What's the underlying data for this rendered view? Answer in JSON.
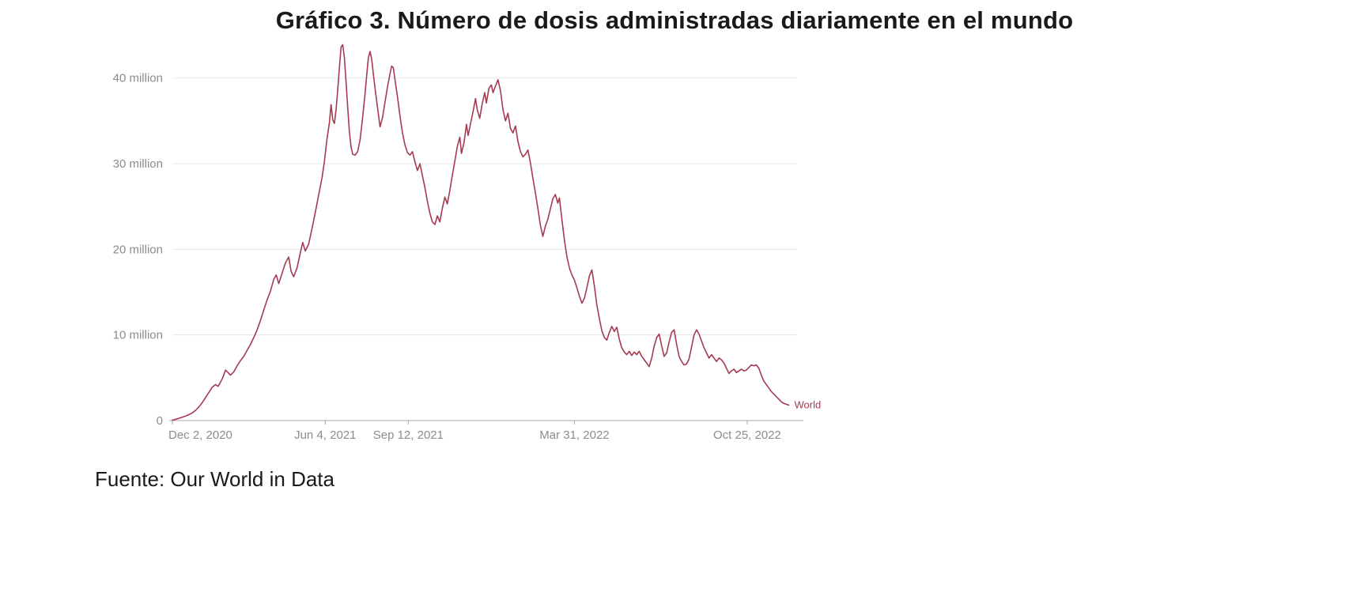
{
  "page": {
    "source": "Fuente: Our World in Data"
  },
  "chart_data": {
    "type": "line",
    "title": "Gráfico 3. Número de dosis administradas diariamente en el mundo",
    "subtitle": "",
    "x_unit": "days since Dec 2, 2020",
    "value_unit": "doses administered per day (millions, 7-day smoothed)",
    "xlim": [
      0,
      752
    ],
    "ylim": [
      0,
      44.5
    ],
    "grid": true,
    "legend_position": "end-of-line",
    "colors": {
      "grid": "#e7e7e7",
      "axis_line": "#a8a8a8",
      "axis_text": "#8c8c8c"
    },
    "x_ticks": [
      {
        "day": 0,
        "label": "Dec 2, 2020"
      },
      {
        "day": 184,
        "label": "Jun 4, 2021"
      },
      {
        "day": 284,
        "label": "Sep 12, 2021"
      },
      {
        "day": 484,
        "label": "Mar 31, 2022"
      },
      {
        "day": 692,
        "label": "Oct 25, 2022"
      }
    ],
    "y_ticks": [
      {
        "value": 0,
        "label": "0"
      },
      {
        "value": 10,
        "label": "10 million"
      },
      {
        "value": 20,
        "label": "20 million"
      },
      {
        "value": 30,
        "label": "30 million"
      },
      {
        "value": 40,
        "label": "40 million"
      }
    ],
    "series": [
      {
        "name": "World",
        "color": "#a63a50",
        "points": [
          [
            0,
            0.05
          ],
          [
            6,
            0.2
          ],
          [
            12,
            0.4
          ],
          [
            18,
            0.6
          ],
          [
            24,
            0.9
          ],
          [
            28,
            1.2
          ],
          [
            32,
            1.6
          ],
          [
            36,
            2.1
          ],
          [
            40,
            2.7
          ],
          [
            44,
            3.3
          ],
          [
            48,
            3.9
          ],
          [
            52,
            4.2
          ],
          [
            55,
            4.0
          ],
          [
            58,
            4.5
          ],
          [
            61,
            5.1
          ],
          [
            64,
            5.9
          ],
          [
            67,
            5.6
          ],
          [
            70,
            5.3
          ],
          [
            74,
            5.7
          ],
          [
            78,
            6.4
          ],
          [
            82,
            7.0
          ],
          [
            86,
            7.5
          ],
          [
            90,
            8.2
          ],
          [
            94,
            8.9
          ],
          [
            98,
            9.7
          ],
          [
            102,
            10.6
          ],
          [
            106,
            11.7
          ],
          [
            110,
            12.9
          ],
          [
            114,
            14.1
          ],
          [
            118,
            15.1
          ],
          [
            122,
            16.5
          ],
          [
            125,
            17.0
          ],
          [
            128,
            16.0
          ],
          [
            132,
            17.2
          ],
          [
            136,
            18.4
          ],
          [
            140,
            19.1
          ],
          [
            143,
            17.4
          ],
          [
            146,
            16.8
          ],
          [
            150,
            17.8
          ],
          [
            154,
            19.6
          ],
          [
            157,
            20.8
          ],
          [
            160,
            19.8
          ],
          [
            164,
            20.6
          ],
          [
            168,
            22.4
          ],
          [
            172,
            24.3
          ],
          [
            176,
            26.3
          ],
          [
            180,
            28.3
          ],
          [
            183,
            30.2
          ],
          [
            186,
            32.8
          ],
          [
            189,
            34.8
          ],
          [
            191,
            36.9
          ],
          [
            193,
            35.1
          ],
          [
            195,
            34.7
          ],
          [
            197,
            36.3
          ],
          [
            199,
            38.6
          ],
          [
            201,
            41.2
          ],
          [
            203,
            43.6
          ],
          [
            205,
            43.9
          ],
          [
            207,
            42.4
          ],
          [
            209,
            39.6
          ],
          [
            211,
            36.6
          ],
          [
            213,
            33.8
          ],
          [
            215,
            32.0
          ],
          [
            217,
            31.1
          ],
          [
            220,
            31.0
          ],
          [
            223,
            31.4
          ],
          [
            226,
            32.8
          ],
          [
            229,
            35.4
          ],
          [
            232,
            38.2
          ],
          [
            234,
            40.4
          ],
          [
            236,
            42.4
          ],
          [
            238,
            43.1
          ],
          [
            240,
            42.2
          ],
          [
            242,
            40.4
          ],
          [
            245,
            38.0
          ],
          [
            248,
            35.8
          ],
          [
            250,
            34.3
          ],
          [
            253,
            35.4
          ],
          [
            256,
            37.2
          ],
          [
            259,
            39.0
          ],
          [
            262,
            40.5
          ],
          [
            264,
            41.4
          ],
          [
            266,
            41.2
          ],
          [
            268,
            39.8
          ],
          [
            271,
            37.8
          ],
          [
            274,
            35.6
          ],
          [
            277,
            33.6
          ],
          [
            280,
            32.2
          ],
          [
            283,
            31.3
          ],
          [
            286,
            31.0
          ],
          [
            289,
            31.4
          ],
          [
            292,
            30.2
          ],
          [
            295,
            29.2
          ],
          [
            298,
            30.0
          ],
          [
            301,
            28.6
          ],
          [
            304,
            27.2
          ],
          [
            307,
            25.6
          ],
          [
            310,
            24.2
          ],
          [
            313,
            23.2
          ],
          [
            316,
            22.9
          ],
          [
            319,
            23.9
          ],
          [
            322,
            23.2
          ],
          [
            325,
            24.8
          ],
          [
            328,
            26.1
          ],
          [
            331,
            25.3
          ],
          [
            334,
            26.9
          ],
          [
            337,
            28.6
          ],
          [
            340,
            30.3
          ],
          [
            343,
            32.0
          ],
          [
            346,
            33.1
          ],
          [
            348,
            31.2
          ],
          [
            351,
            32.4
          ],
          [
            354,
            34.6
          ],
          [
            356,
            33.3
          ],
          [
            359,
            34.7
          ],
          [
            362,
            36.1
          ],
          [
            365,
            37.6
          ],
          [
            367,
            36.3
          ],
          [
            370,
            35.3
          ],
          [
            373,
            37.0
          ],
          [
            376,
            38.3
          ],
          [
            378,
            37.1
          ],
          [
            381,
            38.8
          ],
          [
            384,
            39.2
          ],
          [
            386,
            38.3
          ],
          [
            389,
            39.1
          ],
          [
            392,
            39.8
          ],
          [
            395,
            38.5
          ],
          [
            398,
            36.3
          ],
          [
            401,
            35.0
          ],
          [
            404,
            35.9
          ],
          [
            407,
            34.1
          ],
          [
            410,
            33.6
          ],
          [
            413,
            34.4
          ],
          [
            416,
            32.6
          ],
          [
            419,
            31.4
          ],
          [
            422,
            30.8
          ],
          [
            425,
            31.1
          ],
          [
            428,
            31.6
          ],
          [
            431,
            30.1
          ],
          [
            434,
            28.3
          ],
          [
            437,
            26.6
          ],
          [
            440,
            24.8
          ],
          [
            443,
            22.8
          ],
          [
            446,
            21.5
          ],
          [
            449,
            22.7
          ],
          [
            452,
            23.5
          ],
          [
            455,
            24.7
          ],
          [
            458,
            25.9
          ],
          [
            461,
            26.4
          ],
          [
            464,
            25.4
          ],
          [
            466,
            26.0
          ],
          [
            469,
            23.4
          ],
          [
            472,
            21.0
          ],
          [
            475,
            19.1
          ],
          [
            478,
            17.8
          ],
          [
            481,
            17.0
          ],
          [
            484,
            16.4
          ],
          [
            487,
            15.5
          ],
          [
            490,
            14.5
          ],
          [
            493,
            13.7
          ],
          [
            496,
            14.3
          ],
          [
            499,
            15.5
          ],
          [
            502,
            16.9
          ],
          [
            505,
            17.6
          ],
          [
            508,
            15.7
          ],
          [
            511,
            13.5
          ],
          [
            514,
            11.9
          ],
          [
            517,
            10.5
          ],
          [
            520,
            9.7
          ],
          [
            523,
            9.4
          ],
          [
            526,
            10.3
          ],
          [
            529,
            11.0
          ],
          [
            532,
            10.4
          ],
          [
            535,
            10.9
          ],
          [
            538,
            9.5
          ],
          [
            541,
            8.5
          ],
          [
            544,
            8.0
          ],
          [
            547,
            7.7
          ],
          [
            550,
            8.1
          ],
          [
            553,
            7.6
          ],
          [
            556,
            8.0
          ],
          [
            559,
            7.7
          ],
          [
            562,
            8.1
          ],
          [
            565,
            7.5
          ],
          [
            568,
            7.1
          ],
          [
            571,
            6.7
          ],
          [
            574,
            6.3
          ],
          [
            577,
            7.3
          ],
          [
            580,
            8.7
          ],
          [
            583,
            9.7
          ],
          [
            586,
            10.1
          ],
          [
            589,
            8.7
          ],
          [
            592,
            7.5
          ],
          [
            595,
            7.9
          ],
          [
            598,
            9.2
          ],
          [
            601,
            10.3
          ],
          [
            604,
            10.6
          ],
          [
            607,
            8.9
          ],
          [
            610,
            7.5
          ],
          [
            613,
            6.9
          ],
          [
            616,
            6.5
          ],
          [
            619,
            6.6
          ],
          [
            622,
            7.2
          ],
          [
            625,
            8.6
          ],
          [
            628,
            10.0
          ],
          [
            631,
            10.6
          ],
          [
            634,
            10.1
          ],
          [
            637,
            9.3
          ],
          [
            640,
            8.5
          ],
          [
            643,
            7.9
          ],
          [
            646,
            7.3
          ],
          [
            649,
            7.7
          ],
          [
            652,
            7.3
          ],
          [
            655,
            6.9
          ],
          [
            658,
            7.3
          ],
          [
            661,
            7.1
          ],
          [
            664,
            6.7
          ],
          [
            667,
            6.1
          ],
          [
            670,
            5.5
          ],
          [
            673,
            5.8
          ],
          [
            676,
            6.0
          ],
          [
            679,
            5.6
          ],
          [
            682,
            5.8
          ],
          [
            685,
            6.0
          ],
          [
            688,
            5.8
          ],
          [
            691,
            5.9
          ],
          [
            694,
            6.2
          ],
          [
            697,
            6.5
          ],
          [
            700,
            6.4
          ],
          [
            703,
            6.5
          ],
          [
            706,
            6.1
          ],
          [
            709,
            5.3
          ],
          [
            712,
            4.6
          ],
          [
            715,
            4.2
          ],
          [
            718,
            3.8
          ],
          [
            721,
            3.4
          ],
          [
            724,
            3.1
          ],
          [
            727,
            2.8
          ],
          [
            730,
            2.5
          ],
          [
            733,
            2.2
          ],
          [
            736,
            2.0
          ],
          [
            739,
            1.9
          ],
          [
            742,
            1.8
          ]
        ]
      }
    ]
  }
}
